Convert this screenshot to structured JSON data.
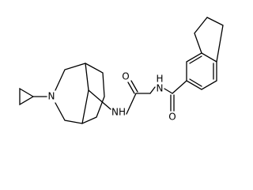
{
  "atoms": [
    {
      "label": "N"
    },
    {
      "label": "NH"
    },
    {
      "label": "O"
    },
    {
      "label": "N"
    },
    {
      "label": "H"
    },
    {
      "label": "O"
    }
  ]
}
